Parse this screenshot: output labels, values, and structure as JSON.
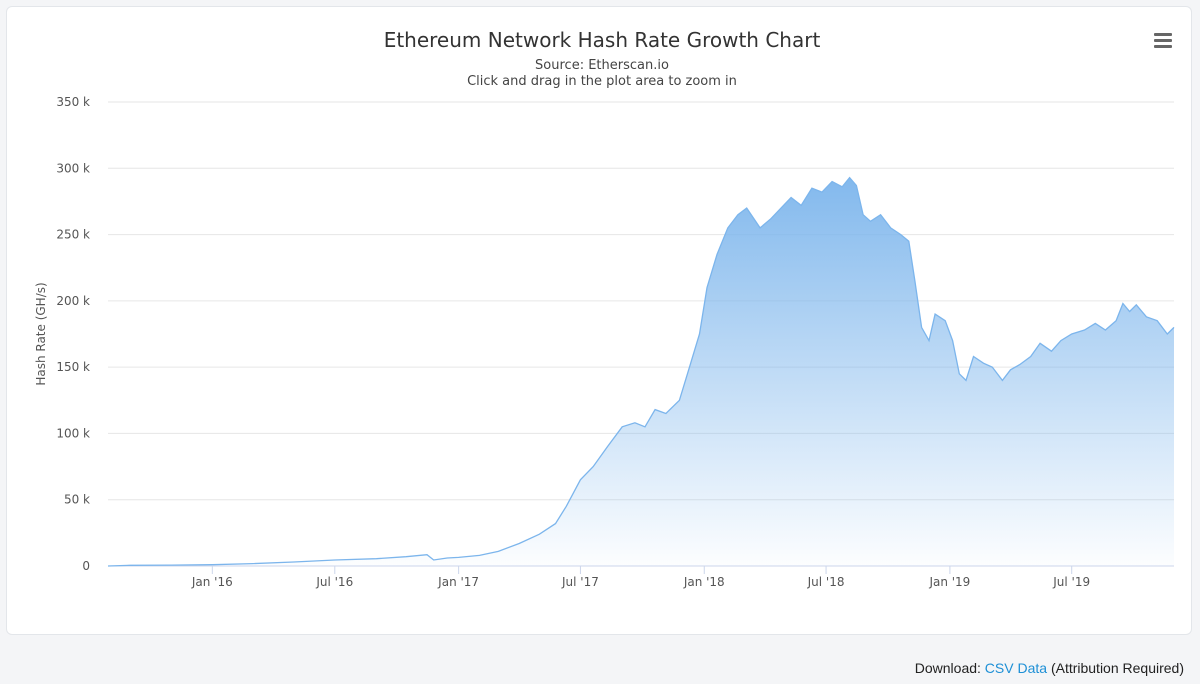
{
  "chart_data": {
    "type": "area",
    "title": "Ethereum Network Hash Rate Growth Chart",
    "subtitle_line1": "Source: Etherscan.io",
    "subtitle_line2": "Click and drag in the plot area to zoom in",
    "xlabel": "",
    "ylabel": "Hash Rate (GH/s)",
    "ylim": [
      0,
      350000
    ],
    "y_ticks": [
      0,
      50000,
      100000,
      150000,
      200000,
      250000,
      300000,
      350000
    ],
    "y_tick_labels": [
      "0",
      "50 k",
      "100 k",
      "150 k",
      "200 k",
      "250 k",
      "300 k",
      "350 k"
    ],
    "x_range": [
      "2015-07-30",
      "2019-11-30"
    ],
    "x_ticks": [
      "2016-01-01",
      "2016-07-01",
      "2017-01-01",
      "2017-07-01",
      "2018-01-01",
      "2018-07-01",
      "2019-01-01",
      "2019-07-01"
    ],
    "x_tick_labels": [
      "Jan '16",
      "Jul '16",
      "Jan '17",
      "Jul '17",
      "Jan '18",
      "Jul '18",
      "Jan '19",
      "Jul '19"
    ],
    "grid": true,
    "series_color": "#7cb5ec",
    "series": [
      {
        "points": [
          [
            "2015-07-30",
            0
          ],
          [
            "2015-09-01",
            500
          ],
          [
            "2015-11-01",
            700
          ],
          [
            "2016-01-01",
            1000
          ],
          [
            "2016-03-01",
            1800
          ],
          [
            "2016-05-01",
            3000
          ],
          [
            "2016-07-01",
            4500
          ],
          [
            "2016-09-01",
            5500
          ],
          [
            "2016-10-15",
            7000
          ],
          [
            "2016-11-15",
            8500
          ],
          [
            "2016-11-25",
            4500
          ],
          [
            "2016-12-15",
            6000
          ],
          [
            "2017-01-01",
            6500
          ],
          [
            "2017-02-01",
            8000
          ],
          [
            "2017-03-01",
            11000
          ],
          [
            "2017-04-01",
            17000
          ],
          [
            "2017-05-01",
            24000
          ],
          [
            "2017-05-25",
            32000
          ],
          [
            "2017-06-10",
            45000
          ],
          [
            "2017-07-01",
            65000
          ],
          [
            "2017-07-20",
            75000
          ],
          [
            "2017-08-10",
            90000
          ],
          [
            "2017-09-01",
            105000
          ],
          [
            "2017-09-20",
            108000
          ],
          [
            "2017-10-05",
            105000
          ],
          [
            "2017-10-20",
            118000
          ],
          [
            "2017-11-05",
            115000
          ],
          [
            "2017-11-25",
            125000
          ],
          [
            "2017-12-10",
            150000
          ],
          [
            "2017-12-25",
            175000
          ],
          [
            "2018-01-05",
            210000
          ],
          [
            "2018-01-20",
            235000
          ],
          [
            "2018-02-05",
            255000
          ],
          [
            "2018-02-20",
            265000
          ],
          [
            "2018-03-05",
            270000
          ],
          [
            "2018-03-25",
            255000
          ],
          [
            "2018-04-10",
            262000
          ],
          [
            "2018-04-25",
            270000
          ],
          [
            "2018-05-10",
            278000
          ],
          [
            "2018-05-25",
            272000
          ],
          [
            "2018-06-10",
            285000
          ],
          [
            "2018-06-25",
            282000
          ],
          [
            "2018-07-10",
            290000
          ],
          [
            "2018-07-25",
            286000
          ],
          [
            "2018-08-05",
            293000
          ],
          [
            "2018-08-15",
            287000
          ],
          [
            "2018-08-25",
            265000
          ],
          [
            "2018-09-05",
            260000
          ],
          [
            "2018-09-20",
            265000
          ],
          [
            "2018-10-05",
            255000
          ],
          [
            "2018-10-20",
            250000
          ],
          [
            "2018-11-01",
            245000
          ],
          [
            "2018-11-10",
            215000
          ],
          [
            "2018-11-20",
            180000
          ],
          [
            "2018-12-01",
            170000
          ],
          [
            "2018-12-10",
            190000
          ],
          [
            "2018-12-25",
            185000
          ],
          [
            "2019-01-05",
            170000
          ],
          [
            "2019-01-15",
            145000
          ],
          [
            "2019-01-25",
            140000
          ],
          [
            "2019-02-05",
            158000
          ],
          [
            "2019-02-20",
            153000
          ],
          [
            "2019-03-05",
            150000
          ],
          [
            "2019-03-20",
            140000
          ],
          [
            "2019-04-01",
            148000
          ],
          [
            "2019-04-15",
            152000
          ],
          [
            "2019-05-01",
            158000
          ],
          [
            "2019-05-15",
            168000
          ],
          [
            "2019-06-01",
            162000
          ],
          [
            "2019-06-15",
            170000
          ],
          [
            "2019-07-01",
            175000
          ],
          [
            "2019-07-20",
            178000
          ],
          [
            "2019-08-05",
            183000
          ],
          [
            "2019-08-20",
            178000
          ],
          [
            "2019-09-05",
            185000
          ],
          [
            "2019-09-15",
            198000
          ],
          [
            "2019-09-25",
            192000
          ],
          [
            "2019-10-05",
            197000
          ],
          [
            "2019-10-20",
            188000
          ],
          [
            "2019-11-05",
            185000
          ],
          [
            "2019-11-20",
            175000
          ],
          [
            "2019-11-30",
            180000
          ]
        ]
      }
    ]
  },
  "menu": {
    "icon": "hamburger-menu-icon"
  },
  "footer": {
    "prefix": "Download:",
    "link_label": "CSV Data",
    "suffix": "(Attribution Required)",
    "link_color": "#1e90d6"
  }
}
